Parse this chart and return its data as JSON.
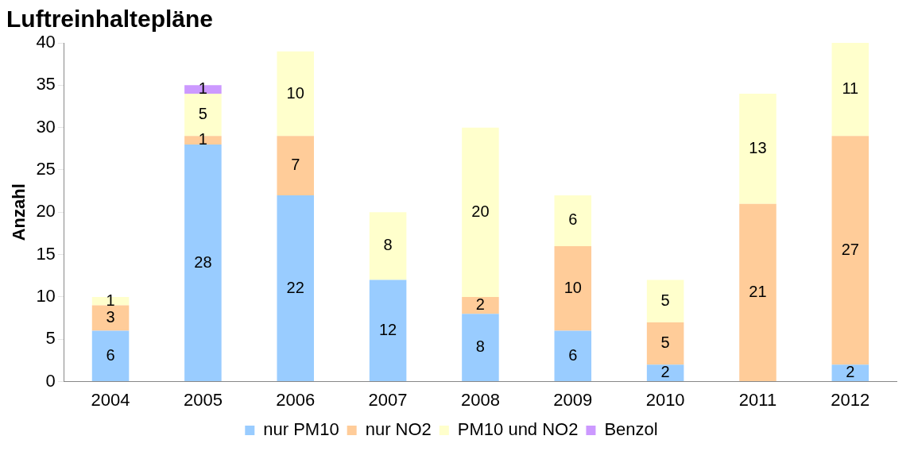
{
  "chart_data": {
    "type": "bar",
    "title": "Luftreinhaltepläne",
    "ylabel": "Anzahl",
    "stacked": true,
    "data_labels": true,
    "legend": "bottom",
    "grid": false,
    "categories": [
      "2004",
      "2005",
      "2006",
      "2007",
      "2008",
      "2009",
      "2010",
      "2011",
      "2012"
    ],
    "ylim": [
      0,
      40
    ],
    "yticks": [
      0,
      5,
      10,
      15,
      20,
      25,
      30,
      35,
      40
    ],
    "series": [
      {
        "name": "nur PM10",
        "color": "#99ccff",
        "values": [
          6,
          28,
          22,
          12,
          8,
          6,
          2,
          null,
          2
        ]
      },
      {
        "name": "nur NO2",
        "color": "#ffcc99",
        "values": [
          3,
          1,
          7,
          null,
          2,
          10,
          5,
          21,
          27
        ]
      },
      {
        "name": "PM10 und NO2",
        "color": "#ffffcc",
        "values": [
          1,
          5,
          10,
          8,
          20,
          6,
          5,
          13,
          11
        ]
      },
      {
        "name": "Benzol",
        "color": "#cc99ff",
        "values": [
          null,
          1,
          null,
          null,
          null,
          null,
          null,
          null,
          null
        ]
      }
    ]
  }
}
